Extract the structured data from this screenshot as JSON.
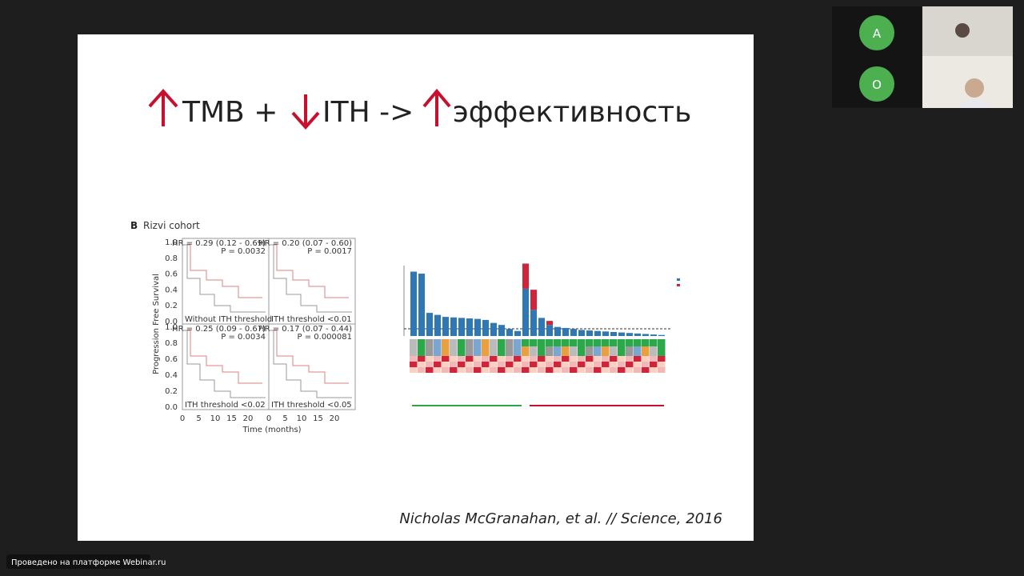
{
  "slide": {
    "title": {
      "part1": "TMB +",
      "part2": "ITH ->",
      "part3": "эффективность"
    },
    "figure_label": "B",
    "cohort": "Rizvi cohort",
    "km": {
      "y_label": "Progression Free Survival",
      "x_label": "Time (months)",
      "yticks": [
        "1.0",
        "0.8",
        "0.6",
        "0.4",
        "0.2",
        "0.0"
      ],
      "xticks": [
        "0",
        "5",
        "10",
        "15",
        "20"
      ],
      "panels": [
        {
          "hr": "HR = 0.29 (0.12 - 0.69)",
          "p": "P = 0.0032",
          "threshold": "Without ITH threshold"
        },
        {
          "hr": "HR = 0.20 (0.07 - 0.60)",
          "p": "P = 0.0017",
          "threshold": "ITH threshold <0.01"
        },
        {
          "hr": "HR = 0.25 (0.09 - 0.67)",
          "p": "P = 0.0034",
          "threshold": "ITH threshold <0.02"
        },
        {
          "hr": "HR = 0.17 (0.07 - 0.44)",
          "p": "P = 0.000081",
          "threshold": "ITH threshold <0.05"
        }
      ]
    },
    "bar_chart": {
      "type": "bar",
      "ylim": [
        0,
        700
      ],
      "series": [
        {
          "name": "Clonal",
          "color": "#2f78b5",
          "values": [
            640,
            620,
            230,
            210,
            190,
            185,
            180,
            175,
            170,
            160,
            130,
            110,
            70,
            50,
            470,
            260,
            180,
            110,
            90,
            80,
            70,
            60,
            55,
            50,
            45,
            40,
            35,
            30,
            25,
            20,
            15,
            10
          ]
        },
        {
          "name": "Subclonal",
          "color": "#d0243a",
          "values": [
            0,
            0,
            0,
            0,
            0,
            0,
            0,
            0,
            0,
            0,
            0,
            0,
            0,
            0,
            250,
            200,
            0,
            40,
            0,
            0,
            0,
            0,
            0,
            0,
            0,
            0,
            0,
            0,
            0,
            0,
            0,
            0
          ]
        }
      ]
    },
    "citation": "Nicholas McGranahan, et al.  // Science, 2016"
  },
  "participants": [
    {
      "initial": "A"
    },
    {
      "initial": "О"
    }
  ],
  "footer": "Проведено на платформе Webinar.ru"
}
